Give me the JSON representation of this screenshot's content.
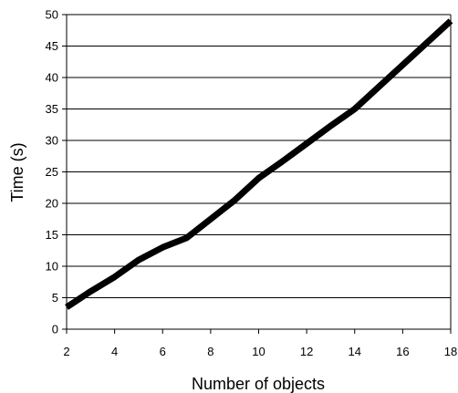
{
  "chart_data": {
    "type": "line",
    "title": "",
    "xlabel": "Number of objects",
    "ylabel": "Time (s)",
    "xlim": [
      2,
      18
    ],
    "ylim": [
      0,
      50
    ],
    "x_ticks": [
      2,
      4,
      6,
      8,
      10,
      12,
      14,
      16,
      18
    ],
    "y_ticks": [
      0,
      5,
      10,
      15,
      20,
      25,
      30,
      35,
      40,
      45,
      50
    ],
    "grid": "horizontal",
    "legend": "none",
    "series": [
      {
        "x": [
          2,
          3,
          4,
          5,
          6,
          7,
          8,
          9,
          10,
          11,
          12,
          13,
          14,
          15,
          16,
          17,
          18
        ],
        "y": [
          3.5,
          6.0,
          8.3,
          11.0,
          13.0,
          14.5,
          17.5,
          20.5,
          24.0,
          26.7,
          29.5,
          32.3,
          35.0,
          38.5,
          42.0,
          45.5,
          49.0
        ],
        "color": "#000000"
      }
    ]
  }
}
